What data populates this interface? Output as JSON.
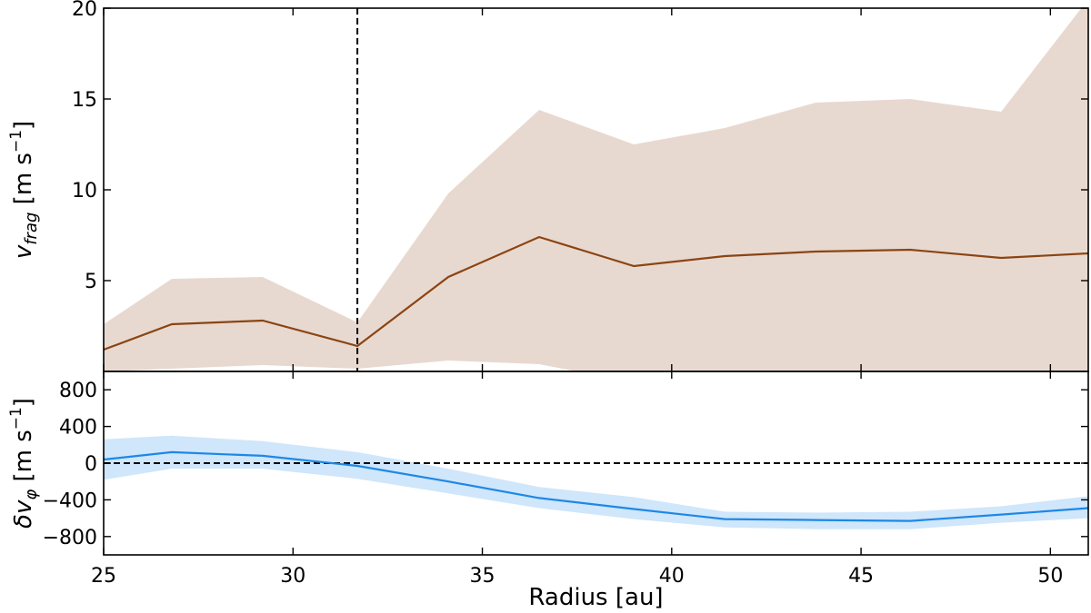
{
  "chart_data": [
    {
      "type": "line",
      "panel": "top",
      "ylabel": "v_frag [m s^-1]",
      "ylabel_parts": {
        "symbol": "v",
        "sub": "frag",
        "unit_open": "[m s",
        "unit_exp": "−1",
        "unit_close": "]"
      },
      "xlim": [
        25,
        51
      ],
      "ylim": [
        0,
        20
      ],
      "yticks": [
        5,
        10,
        15,
        20
      ],
      "ytick_labels": [
        "5",
        "10",
        "15",
        "20"
      ],
      "grid": false,
      "vline_x": 31.7,
      "series": [
        {
          "x": [
            25.0,
            26.8,
            29.2,
            31.7,
            34.1,
            36.5,
            39.0,
            41.4,
            43.8,
            46.3,
            48.7,
            51.0
          ],
          "y": [
            1.2,
            2.6,
            2.8,
            1.4,
            5.2,
            7.4,
            5.8,
            6.35,
            6.6,
            6.7,
            6.25,
            6.5
          ],
          "lower": [
            0.0,
            0.15,
            0.35,
            0.15,
            0.6,
            0.4,
            -0.6,
            -0.6,
            -0.8,
            -0.6,
            -0.8,
            -0.6
          ],
          "upper": [
            2.6,
            5.1,
            5.2,
            2.7,
            9.8,
            14.4,
            12.5,
            13.4,
            14.8,
            15.0,
            14.3,
            20.5
          ],
          "color": "#8b4513",
          "band_color": "#e8d9d0"
        }
      ]
    },
    {
      "type": "line",
      "panel": "bottom",
      "ylabel": "δv_φ [m s^-1]",
      "ylabel_parts": {
        "symbol": "δv",
        "sub": "φ",
        "unit_open": "[m s",
        "unit_exp": "−1",
        "unit_close": "]"
      },
      "xlabel": "Radius [au]",
      "xlim": [
        25,
        51
      ],
      "ylim": [
        -1000,
        1000
      ],
      "xticks": [
        25,
        30,
        35,
        40,
        45,
        50
      ],
      "xtick_labels": [
        "25",
        "30",
        "35",
        "40",
        "45",
        "50"
      ],
      "yticks": [
        -800,
        -400,
        0,
        400,
        800
      ],
      "ytick_labels": [
        "−800",
        "−400",
        "0",
        "400",
        "800"
      ],
      "grid": false,
      "hline_y": 0,
      "series": [
        {
          "x": [
            25.0,
            26.8,
            29.2,
            31.7,
            34.1,
            36.5,
            39.0,
            41.4,
            43.8,
            46.3,
            48.7,
            51.0
          ],
          "y": [
            40,
            120,
            80,
            -30,
            -200,
            -380,
            -500,
            -610,
            -620,
            -630,
            -560,
            -490
          ],
          "lower": [
            -180,
            -60,
            -60,
            -170,
            -330,
            -490,
            -610,
            -700,
            -720,
            -720,
            -650,
            -600
          ],
          "upper": [
            260,
            300,
            240,
            120,
            -60,
            -260,
            -370,
            -530,
            -540,
            -530,
            -470,
            -360
          ],
          "color": "#1e88e5",
          "band_color": "#cfe6fb"
        }
      ]
    }
  ]
}
